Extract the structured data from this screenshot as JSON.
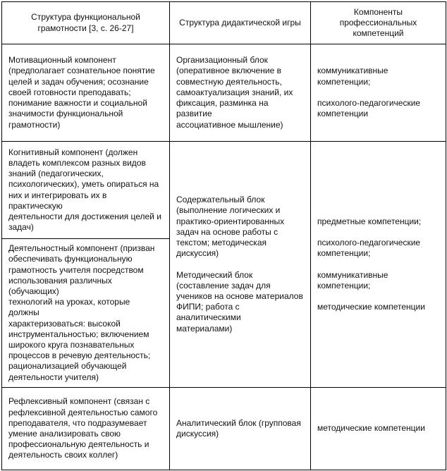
{
  "header": {
    "col1": "Структура функциональной\nграмотности [3, с. 26-27]",
    "col2": "Структура дидактической игры",
    "col3": "Компоненты\nпрофессиональных\nкомпетенций"
  },
  "rows": [
    {
      "component": "Мотивационный компонент\n(предполагает сознательное понятие\nцелей и задач обучения; осознание\nсвоей готовности преподавать;\nпонимание важности и социальной\nзначимости функциональной\nграмотности)",
      "game_block": "Организационный блок\n(оперативное включение в\nсовместную деятельность,\nсамоактуализация знаний, их\nфиксация, разминка на развитие\nассоциативное мышление)",
      "competencies": "коммуникативные\nкомпетенции;\n\nпсихолого-педагогические\nкомпетенции"
    },
    {
      "component": "Когнитивный компонент (должен\nвладеть комплексом разных видов\nзнаний (педагогических,\nпсихологических), уметь опираться на\nних и интегрировать их в практическую\nдеятельности для достижения целей и\nзадач)"
    },
    {
      "component": "Деятельностный компонент (призван\nобеспечивать функциональную\nграмотность учителя посредством\nиспользования различных (обучающих)\nтехнологий на уроках, которые должны\nхарактеризоваться: высокой\nинструментальностью; включением\nширокого круга познавательных\nпроцессов в речевую деятельность;\nрационализацией обучающей\nдеятельности учителя)"
    },
    {
      "component": "Рефлексивный компонент (связан с\nрефлексивной деятельностью самого\nпреподавателя, что подразумевает\nумение анализировать свою\nпрофессиональную деятельность и\nдеятельность своих коллег)",
      "game_block": "Аналитический блок (групповая\nдискуссия)",
      "competencies": "методические компетенции"
    }
  ],
  "merged": {
    "game_block": "Содержательный блок\n(выполнение логических и\nпрактико-ориентированных\nзадач на основе работы с\nтекстом; методическая\nдискуссия)\n\nМетодический блок\n(составление задач для\nучеников на основе материалов\nФИПИ; работа с аналитическими\nматериалами)",
    "competencies": "предметные компетенции;\n\nпсихолого-педагогические\nкомпетенции;\n\nкоммуникативные\nкомпетенции;\n\nметодические компетенции"
  }
}
